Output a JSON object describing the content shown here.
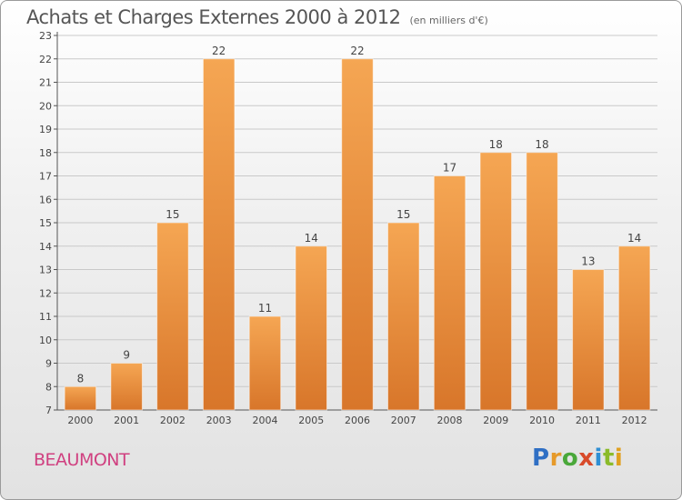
{
  "title": "Achats et Charges Externes 2000 à 2012",
  "subtitle": "(en milliers d'€)",
  "place": "BEAUMONT",
  "logo": {
    "letters": [
      "P",
      "r",
      "o",
      "x",
      "i",
      "t",
      "i"
    ],
    "colors": [
      "#2f6fc4",
      "#e69a2a",
      "#4aa83a",
      "#d84a2a",
      "#2f8fd4",
      "#8bbb2a",
      "#e0a020"
    ]
  },
  "colors": {
    "bar_light": "#f5a653",
    "bar_dark": "#d8762a",
    "grid": "#c9c9c9",
    "axis": "#555555"
  },
  "chart_data": {
    "type": "bar",
    "title": "Achats et Charges Externes 2000 à 2012",
    "subtitle": "(en milliers d'€)",
    "categories": [
      "2000",
      "2001",
      "2002",
      "2003",
      "2004",
      "2005",
      "2006",
      "2007",
      "2008",
      "2009",
      "2010",
      "2011",
      "2012"
    ],
    "values": [
      8,
      9,
      15,
      22,
      11,
      14,
      22,
      15,
      17,
      18,
      18,
      13,
      14
    ],
    "data_labels": [
      "8",
      "9",
      "15",
      "22",
      "11",
      "14",
      "22",
      "15",
      "17",
      "18",
      "18",
      "13",
      "14"
    ],
    "yticks": [
      "7",
      "8",
      "9",
      "10",
      "11",
      "12",
      "13",
      "14",
      "15",
      "16",
      "17",
      "18",
      "19",
      "20",
      "21",
      "22",
      "23"
    ],
    "ylim": [
      7,
      23
    ],
    "grid": true,
    "legend": "none"
  }
}
